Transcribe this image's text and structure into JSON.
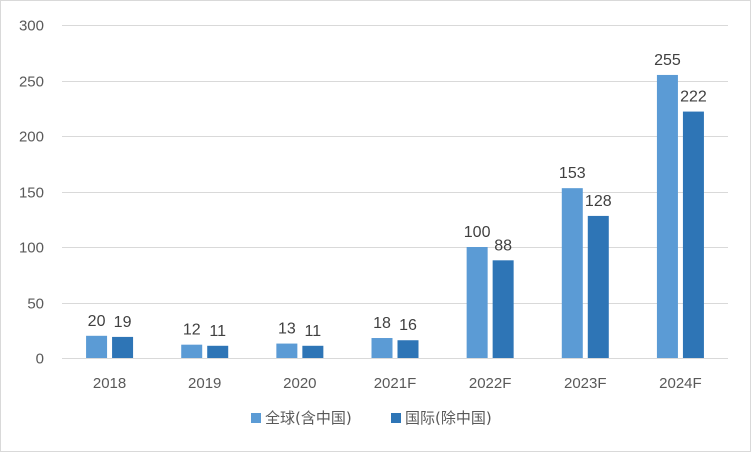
{
  "chart_data": {
    "type": "bar",
    "title": "",
    "xlabel": "",
    "ylabel": "",
    "categories": [
      "2018",
      "2019",
      "2020",
      "2021F",
      "2022F",
      "2023F",
      "2024F"
    ],
    "ylim": [
      0,
      300
    ],
    "yticks": [
      0,
      50,
      100,
      150,
      200,
      250,
      300
    ],
    "grid": true,
    "legend_position": "bottom",
    "series": [
      {
        "name": "全球(含中国)",
        "color": "#5b9bd5",
        "values": [
          20,
          12,
          13,
          18,
          100,
          153,
          255
        ]
      },
      {
        "name": "国际(除中国)",
        "color": "#2e75b6",
        "values": [
          19,
          11,
          11,
          16,
          88,
          128,
          222
        ]
      }
    ]
  }
}
